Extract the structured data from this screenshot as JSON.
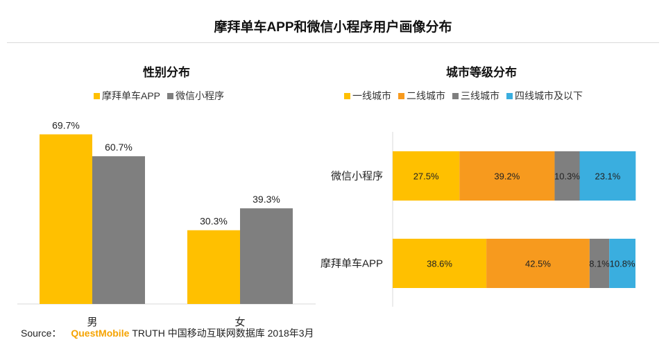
{
  "title": "摩拜单车APP和微信小程序用户画像分布",
  "source": {
    "label": "Source：",
    "brand": "QuestMobile",
    "rest": "TRUTH 中国移动互联网数据库 2018年3月"
  },
  "colors": {
    "yellow": "#FFC000",
    "gray": "#7F7F7F",
    "orange": "#F79A1E",
    "blue": "#3AAEDF",
    "axis": "#D9D9D9"
  },
  "chart_data": [
    {
      "type": "bar",
      "title": "性别分布",
      "categories": [
        "男",
        "女"
      ],
      "series": [
        {
          "name": "摩拜单车APP",
          "color": "#FFC000",
          "values": [
            69.7,
            30.3
          ],
          "labels": [
            "69.7%",
            "30.3%"
          ]
        },
        {
          "name": "微信小程序",
          "color": "#7F7F7F",
          "values": [
            60.7,
            39.3
          ],
          "labels": [
            "60.7%",
            "39.3%"
          ]
        }
      ],
      "ylim": [
        0,
        75
      ],
      "legend": "top-center"
    },
    {
      "type": "bar",
      "orientation": "horizontal-stacked",
      "title": "城市等级分布",
      "categories": [
        "微信小程序",
        "摩拜单车APP"
      ],
      "series": [
        {
          "name": "一线城市",
          "color": "#FFC000",
          "values": [
            27.5,
            38.6
          ],
          "labels": [
            "27.5%",
            "38.6%"
          ]
        },
        {
          "name": "二线城市",
          "color": "#F79A1E",
          "values": [
            39.2,
            42.5
          ],
          "labels": [
            "39.2%",
            "42.5%"
          ]
        },
        {
          "name": "三线城市",
          "color": "#7F7F7F",
          "values": [
            10.3,
            8.1
          ],
          "labels": [
            "10.3%",
            "8.1%"
          ]
        },
        {
          "name": "四线城市及以下",
          "color": "#3AAEDF",
          "values": [
            23.1,
            10.8
          ],
          "labels": [
            "23.1%",
            "10.8%"
          ]
        }
      ],
      "xlim": [
        0,
        100
      ],
      "legend": "top-center"
    }
  ]
}
